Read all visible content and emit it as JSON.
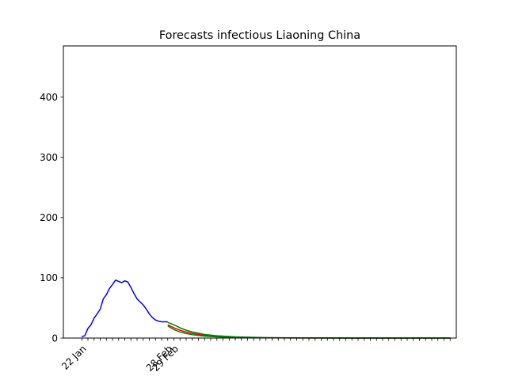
{
  "chart_data": {
    "type": "line",
    "title": "Forecasts infectious Liaoning China",
    "xlabel": "",
    "ylabel": "",
    "ylim": [
      0,
      485
    ],
    "xlim": [
      -3,
      61
    ],
    "grid": false,
    "yticks": [
      0,
      100,
      200,
      300,
      400
    ],
    "xtick_count": 60,
    "xtick_labels": [
      {
        "day": 0,
        "label": "22 Jan"
      },
      {
        "day": 14,
        "label": "28 Feb"
      },
      {
        "day": 15,
        "label": "29 Feb"
      }
    ],
    "series": [
      {
        "color": "#0000ff",
        "x": [
          0,
          0.5,
          1,
          1.5,
          2,
          2.5,
          3,
          3.5,
          4,
          4.5,
          5,
          5.5,
          6,
          6.5,
          7,
          7.5,
          8,
          8.5,
          9,
          9.5,
          10,
          10.5,
          11,
          11.5,
          12,
          12.5,
          13,
          13.5,
          14
        ],
        "values": [
          2,
          4,
          16,
          22,
          33,
          40,
          48,
          65,
          72,
          82,
          89,
          96,
          94,
          92,
          95,
          93,
          84,
          74,
          65,
          60,
          55,
          48,
          40,
          34,
          30,
          28,
          27,
          27,
          27
        ]
      },
      {
        "color": "#ff0000",
        "x": [
          14,
          15,
          16,
          17,
          18,
          20,
          22,
          25,
          30,
          35,
          40,
          45,
          50,
          55,
          60
        ],
        "values": [
          22,
          17,
          13,
          10,
          7.5,
          4.5,
          2.8,
          1.4,
          0.5,
          0.2,
          0.1,
          0.05,
          0.02,
          0.01,
          0
        ]
      },
      {
        "color": "#008000",
        "x": [
          14,
          15,
          16,
          17,
          18,
          20,
          22,
          25,
          30,
          35,
          40,
          45,
          50,
          55,
          60
        ],
        "values": [
          26,
          22,
          17,
          13,
          10,
          6,
          3.8,
          2,
          0.7,
          0.3,
          0.12,
          0.05,
          0.02,
          0.01,
          0
        ]
      },
      {
        "color": "#008000",
        "x": [
          14,
          15,
          16,
          17,
          18,
          20,
          22,
          25,
          30,
          35,
          40,
          45,
          50,
          55,
          60
        ],
        "values": [
          20,
          14,
          10,
          7.5,
          5.5,
          3.2,
          1.9,
          0.9,
          0.3,
          0.1,
          0.05,
          0.02,
          0.01,
          0,
          0
        ]
      }
    ]
  }
}
